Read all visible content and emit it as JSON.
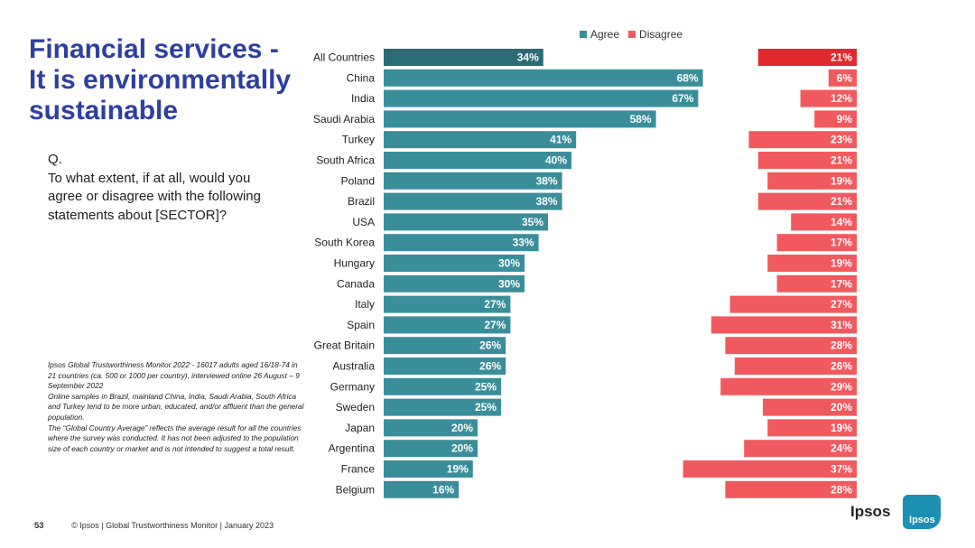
{
  "title": "Financial services -\nIt is environmentally sustainable",
  "question": {
    "label": "Q.",
    "text": "To what extent, if at all, would you agree or disagree with the following statements about [SECTOR]?"
  },
  "notes": [
    "Ipsos Global Trustworthiness Monitor 2022 - 16017 adults aged 16/18-74 in 21 countries (ca. 500 or 1000 per country), interviewed online 26 August – 9 September 2022",
    "Online samples in Brazil, mainland China, India, Saudi Arabia, South Africa and Turkey tend to be more urban, educated, and/or affluent than the general population.",
    "The “Global Country Average” reflects the average result for all the countries where the survey was conducted. It has not been adjusted to the population size of each country or market and is not intended to suggest a total result."
  ],
  "footer": {
    "page_number": "53",
    "text": "© Ipsos | Global Trustworthiness Monitor | January 2023"
  },
  "logo": {
    "word": "Ipsos",
    "mark": "Ipsos"
  },
  "colors": {
    "agree": "#3a8e9a",
    "agree_highlight": "#2b6b74",
    "disagree": "#f05a5e",
    "disagree_highlight": "#e12a2d",
    "title": "#2d3fa0"
  },
  "chart_data": {
    "type": "bar",
    "orientation": "horizontal",
    "categories": [
      "All Countries",
      "China",
      "India",
      "Saudi Arabia",
      "Turkey",
      "South Africa",
      "Poland",
      "Brazil",
      "USA",
      "South Korea",
      "Hungary",
      "Canada",
      "Italy",
      "Spain",
      "Great Britain",
      "Australia",
      "Germany",
      "Sweden",
      "Japan",
      "Argentina",
      "France",
      "Belgium"
    ],
    "series": [
      {
        "name": "Agree",
        "values": [
          34,
          68,
          67,
          58,
          41,
          40,
          38,
          38,
          35,
          33,
          30,
          30,
          27,
          27,
          26,
          26,
          25,
          25,
          20,
          20,
          19,
          16
        ]
      },
      {
        "name": "Disagree",
        "values": [
          21,
          6,
          12,
          9,
          23,
          21,
          19,
          21,
          14,
          17,
          19,
          17,
          27,
          31,
          28,
          26,
          29,
          20,
          19,
          24,
          37,
          28
        ]
      }
    ],
    "value_suffix": "%",
    "legend": [
      "Agree",
      "Disagree"
    ],
    "legend_position": "top"
  }
}
